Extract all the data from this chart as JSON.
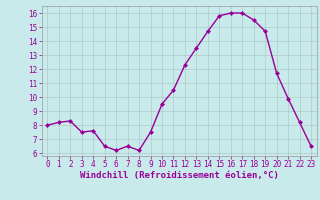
{
  "x": [
    0,
    1,
    2,
    3,
    4,
    5,
    6,
    7,
    8,
    9,
    10,
    11,
    12,
    13,
    14,
    15,
    16,
    17,
    18,
    19,
    20,
    21,
    22,
    23
  ],
  "y": [
    8.0,
    8.2,
    8.3,
    7.5,
    7.6,
    6.5,
    6.2,
    6.5,
    6.2,
    7.5,
    9.5,
    10.5,
    12.3,
    13.5,
    14.7,
    15.8,
    16.0,
    16.0,
    15.5,
    14.7,
    11.7,
    9.9,
    8.2,
    6.5
  ],
  "line_color": "#990099",
  "marker": "D",
  "marker_size": 2.0,
  "line_width": 1.0,
  "xlabel": "Windchill (Refroidissement éolien,°C)",
  "xlabel_fontsize": 6.5,
  "xlabel_color": "#990099",
  "xlim": [
    -0.5,
    23.5
  ],
  "ylim": [
    5.8,
    16.5
  ],
  "yticks": [
    6,
    7,
    8,
    9,
    10,
    11,
    12,
    13,
    14,
    15,
    16
  ],
  "xticks": [
    0,
    1,
    2,
    3,
    4,
    5,
    6,
    7,
    8,
    9,
    10,
    11,
    12,
    13,
    14,
    15,
    16,
    17,
    18,
    19,
    20,
    21,
    22,
    23
  ],
  "grid_color": "#b0c8c8",
  "background_color": "#c8eaea",
  "tick_fontsize": 5.5,
  "tick_color": "#990099",
  "spine_color": "#999999"
}
